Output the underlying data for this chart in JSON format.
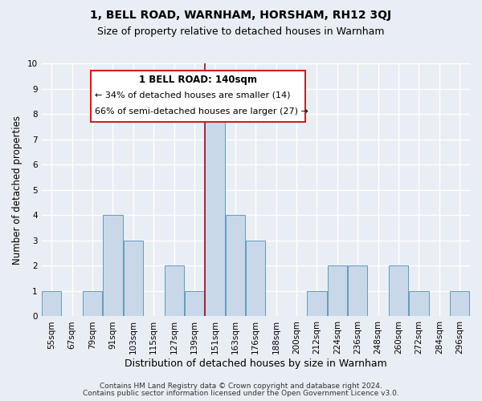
{
  "title": "1, BELL ROAD, WARNHAM, HORSHAM, RH12 3QJ",
  "subtitle": "Size of property relative to detached houses in Warnham",
  "xlabel": "Distribution of detached houses by size in Warnham",
  "ylabel": "Number of detached properties",
  "footer_line1": "Contains HM Land Registry data © Crown copyright and database right 2024.",
  "footer_line2": "Contains public sector information licensed under the Open Government Licence v3.0.",
  "bins": [
    "55sqm",
    "67sqm",
    "79sqm",
    "91sqm",
    "103sqm",
    "115sqm",
    "127sqm",
    "139sqm",
    "151sqm",
    "163sqm",
    "176sqm",
    "188sqm",
    "200sqm",
    "212sqm",
    "224sqm",
    "236sqm",
    "248sqm",
    "260sqm",
    "272sqm",
    "284sqm",
    "296sqm"
  ],
  "counts": [
    1,
    0,
    1,
    4,
    3,
    0,
    2,
    1,
    8,
    4,
    3,
    0,
    0,
    1,
    2,
    2,
    0,
    2,
    1,
    0,
    1
  ],
  "bar_color": "#c8d8e8",
  "bar_edge_color": "#6699bb",
  "property_line_color": "#8b1a1a",
  "annotation_title": "1 BELL ROAD: 140sqm",
  "annotation_line1": "← 34% of detached houses are smaller (14)",
  "annotation_line2": "66% of semi-detached houses are larger (27) →",
  "annotation_box_color": "#ffffff",
  "annotation_box_edge": "#cc2222",
  "ylim": [
    0,
    10
  ],
  "yticks": [
    0,
    1,
    2,
    3,
    4,
    5,
    6,
    7,
    8,
    9,
    10
  ],
  "background_color": "#e8eef4",
  "grid_color": "#ffffff",
  "title_fontsize": 10,
  "subtitle_fontsize": 9
}
